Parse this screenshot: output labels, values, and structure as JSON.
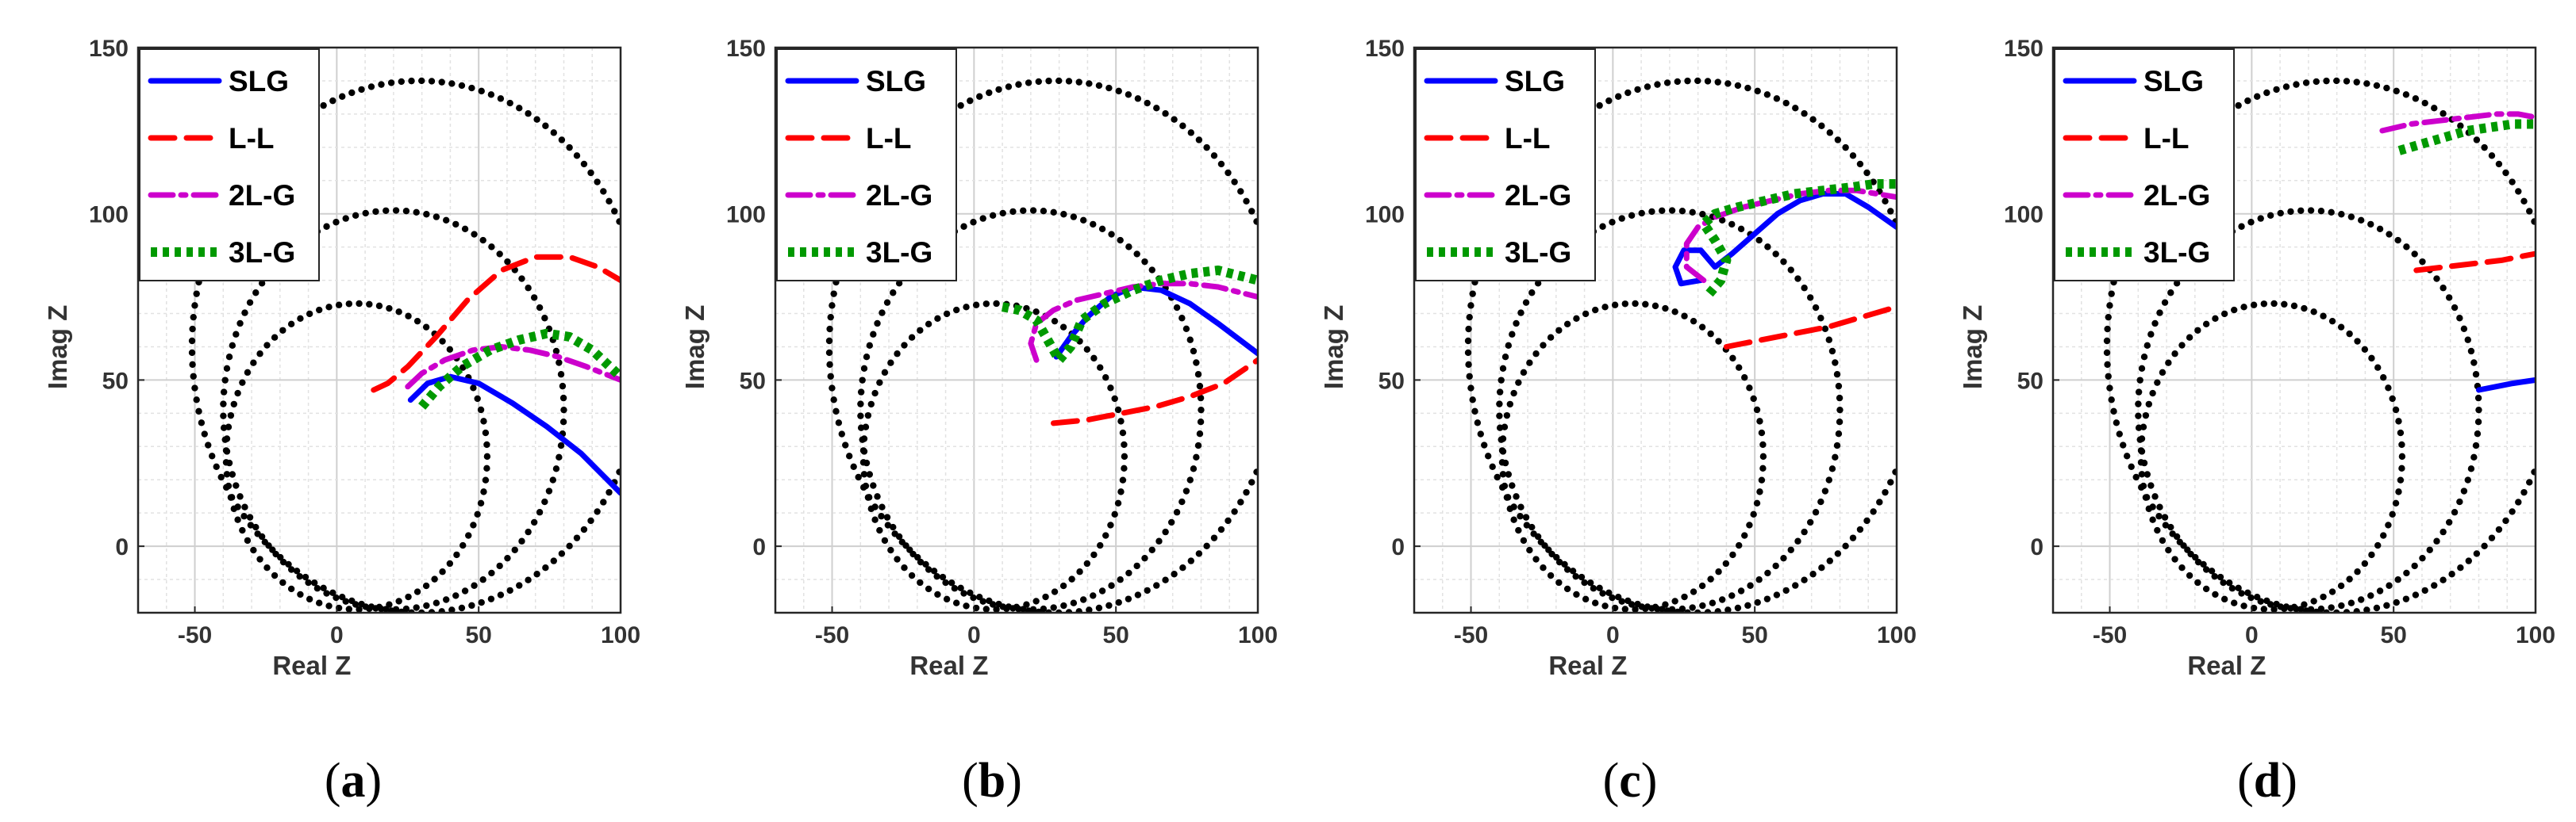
{
  "chart_data": [
    {
      "type": "line",
      "panel_label": "a",
      "xlabel": "Real Z",
      "ylabel": "Imag Z",
      "xlim": [
        -70,
        100
      ],
      "ylim": [
        -20,
        150
      ],
      "xticks": [
        -50,
        0,
        50,
        100
      ],
      "yticks": [
        0,
        50,
        100,
        150
      ],
      "grid": true,
      "legend_position": "top-left",
      "circles": [
        {
          "cx": 7,
          "cy": 27,
          "r": 46
        },
        {
          "cx": 20,
          "cy": 41,
          "r": 60
        },
        {
          "cx": 29,
          "cy": 60,
          "r": 80
        }
      ],
      "series": [
        {
          "name": "SLG",
          "color": "#0000ff",
          "dash": "solid",
          "points": [
            [
              26,
              44
            ],
            [
              32,
              49
            ],
            [
              40,
              51
            ],
            [
              50,
              49
            ],
            [
              62,
              43
            ],
            [
              74,
              36
            ],
            [
              86,
              28
            ],
            [
              100,
              16
            ]
          ]
        },
        {
          "name": "L-L",
          "color": "#ff0000",
          "dash": "dash",
          "points": [
            [
              13,
              47
            ],
            [
              18,
              49
            ],
            [
              25,
              54
            ],
            [
              35,
              63
            ],
            [
              46,
              74
            ],
            [
              58,
              83
            ],
            [
              70,
              87
            ],
            [
              82,
              87
            ],
            [
              92,
              84
            ],
            [
              100,
              80
            ]
          ]
        },
        {
          "name": "2L-G",
          "color": "#cc00cc",
          "dash": "dashdot",
          "points": [
            [
              25,
              48
            ],
            [
              30,
              52
            ],
            [
              38,
              56
            ],
            [
              48,
              59
            ],
            [
              58,
              60
            ],
            [
              68,
              59
            ],
            [
              78,
              57
            ],
            [
              88,
              54
            ],
            [
              100,
              50
            ]
          ]
        },
        {
          "name": "3L-G",
          "color": "#009900",
          "dash": "dot",
          "points": [
            [
              30,
              42
            ],
            [
              36,
              48
            ],
            [
              44,
              54
            ],
            [
              54,
              59
            ],
            [
              64,
              62
            ],
            [
              74,
              64
            ],
            [
              82,
              63
            ],
            [
              90,
              59
            ],
            [
              100,
              51
            ]
          ]
        }
      ]
    },
    {
      "type": "line",
      "panel_label": "b",
      "xlabel": "Real Z",
      "ylabel": "Imag Z",
      "xlim": [
        -70,
        100
      ],
      "ylim": [
        -20,
        150
      ],
      "xticks": [
        -50,
        0,
        50,
        100
      ],
      "yticks": [
        0,
        50,
        100,
        150
      ],
      "grid": true,
      "legend_position": "top-left",
      "circles": [
        {
          "cx": 7,
          "cy": 27,
          "r": 46
        },
        {
          "cx": 20,
          "cy": 41,
          "r": 60
        },
        {
          "cx": 29,
          "cy": 60,
          "r": 80
        }
      ],
      "series": [
        {
          "name": "SLG",
          "color": "#0000ff",
          "dash": "solid",
          "points": [
            [
              29,
              57
            ],
            [
              34,
              63
            ],
            [
              40,
              69
            ],
            [
              48,
              75
            ],
            [
              56,
              78
            ],
            [
              66,
              77
            ],
            [
              76,
              73
            ],
            [
              86,
              67
            ],
            [
              100,
              58
            ]
          ]
        },
        {
          "name": "L-L",
          "color": "#ff0000",
          "dash": "dash",
          "points": [
            [
              28,
              37
            ],
            [
              40,
              38
            ],
            [
              52,
              40
            ],
            [
              64,
              42
            ],
            [
              76,
              45
            ],
            [
              88,
              49
            ],
            [
              100,
              56
            ]
          ]
        },
        {
          "name": "2L-G",
          "color": "#cc00cc",
          "dash": "dashdot",
          "points": [
            [
              22,
              56
            ],
            [
              20,
              61
            ],
            [
              22,
              67
            ],
            [
              28,
              71
            ],
            [
              36,
              74
            ],
            [
              46,
              76
            ],
            [
              56,
              78
            ],
            [
              66,
              79
            ],
            [
              76,
              79
            ],
            [
              86,
              78
            ],
            [
              100,
              75
            ]
          ]
        },
        {
          "name": "3L-G",
          "color": "#009900",
          "dash": "dot",
          "points": [
            [
              10,
              72
            ],
            [
              16,
              71
            ],
            [
              22,
              68
            ],
            [
              26,
              62
            ],
            [
              30,
              56
            ],
            [
              34,
              60
            ],
            [
              38,
              68
            ],
            [
              46,
              73
            ],
            [
              56,
              77
            ],
            [
              66,
              80
            ],
            [
              76,
              82
            ],
            [
              86,
              83
            ],
            [
              100,
              80
            ]
          ]
        }
      ]
    },
    {
      "type": "line",
      "panel_label": "c",
      "xlabel": "Real Z",
      "ylabel": "Imag Z",
      "xlim": [
        -70,
        100
      ],
      "ylim": [
        -20,
        150
      ],
      "xticks": [
        -50,
        0,
        50,
        100
      ],
      "yticks": [
        0,
        50,
        100,
        150
      ],
      "grid": true,
      "legend_position": "top-left",
      "circles": [
        {
          "cx": 7,
          "cy": 27,
          "r": 46
        },
        {
          "cx": 20,
          "cy": 41,
          "r": 60
        },
        {
          "cx": 29,
          "cy": 60,
          "r": 80
        }
      ],
      "series": [
        {
          "name": "SLG",
          "color": "#0000ff",
          "dash": "solid",
          "points": [
            [
              31,
              80
            ],
            [
              24,
              79
            ],
            [
              22,
              84
            ],
            [
              25,
              89
            ],
            [
              31,
              89
            ],
            [
              36,
              84
            ],
            [
              42,
              88
            ],
            [
              50,
              94
            ],
            [
              58,
              100
            ],
            [
              66,
              104
            ],
            [
              74,
              106
            ],
            [
              82,
              106
            ],
            [
              90,
              102
            ],
            [
              100,
              96
            ]
          ]
        },
        {
          "name": "L-L",
          "color": "#ff0000",
          "dash": "dash",
          "points": [
            [
              40,
              60
            ],
            [
              52,
              62
            ],
            [
              64,
              64
            ],
            [
              76,
              66
            ],
            [
              88,
              69
            ],
            [
              100,
              72
            ]
          ]
        },
        {
          "name": "2L-G",
          "color": "#cc00cc",
          "dash": "dashdot",
          "points": [
            [
              32,
              80
            ],
            [
              26,
              84
            ],
            [
              26,
              91
            ],
            [
              30,
              96
            ],
            [
              36,
              99
            ],
            [
              46,
              102
            ],
            [
              56,
              104
            ],
            [
              66,
              106
            ],
            [
              76,
              107
            ],
            [
              86,
              107
            ],
            [
              100,
              105
            ]
          ]
        },
        {
          "name": "3L-G",
          "color": "#009900",
          "dash": "dot",
          "points": [
            [
              34,
              76
            ],
            [
              38,
              80
            ],
            [
              40,
              86
            ],
            [
              36,
              92
            ],
            [
              32,
              97
            ],
            [
              36,
              100
            ],
            [
              44,
              102
            ],
            [
              54,
              104
            ],
            [
              64,
              106
            ],
            [
              74,
              107
            ],
            [
              84,
              108
            ],
            [
              92,
              109
            ],
            [
              100,
              109
            ]
          ]
        }
      ]
    },
    {
      "type": "line",
      "panel_label": "d",
      "xlabel": "Real Z",
      "ylabel": "Imag Z",
      "xlim": [
        -70,
        100
      ],
      "ylim": [
        -20,
        150
      ],
      "xticks": [
        -50,
        0,
        50,
        100
      ],
      "yticks": [
        0,
        50,
        100,
        150
      ],
      "grid": true,
      "legend_position": "top-left",
      "circles": [
        {
          "cx": 7,
          "cy": 27,
          "r": 46
        },
        {
          "cx": 20,
          "cy": 41,
          "r": 60
        },
        {
          "cx": 29,
          "cy": 60,
          "r": 80
        }
      ],
      "series": [
        {
          "name": "SLG",
          "color": "#0000ff",
          "dash": "solid",
          "points": [
            [
              80,
              47
            ],
            [
              86,
              48
            ],
            [
              92,
              49
            ],
            [
              100,
              50
            ]
          ]
        },
        {
          "name": "L-L",
          "color": "#ff0000",
          "dash": "dash",
          "points": [
            [
              58,
              83
            ],
            [
              68,
              84
            ],
            [
              78,
              85
            ],
            [
              88,
              86
            ],
            [
              100,
              88
            ]
          ]
        },
        {
          "name": "2L-G",
          "color": "#cc00cc",
          "dash": "dashdot",
          "points": [
            [
              46,
              125
            ],
            [
              56,
              127
            ],
            [
              66,
              128
            ],
            [
              76,
              129
            ],
            [
              86,
              130
            ],
            [
              94,
              130
            ],
            [
              100,
              129
            ]
          ]
        },
        {
          "name": "3L-G",
          "color": "#009900",
          "dash": "dot",
          "points": [
            [
              52,
              119
            ],
            [
              60,
              121
            ],
            [
              68,
              123
            ],
            [
              76,
              125
            ],
            [
              84,
              126
            ],
            [
              92,
              127
            ],
            [
              100,
              127
            ]
          ]
        }
      ]
    }
  ]
}
